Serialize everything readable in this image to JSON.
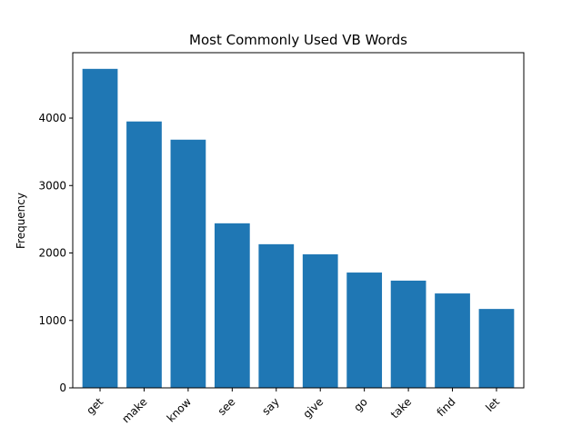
{
  "chart_data": {
    "type": "bar",
    "title": "Most Commonly Used VB Words",
    "xlabel": "",
    "ylabel": "Frequency",
    "categories": [
      "get",
      "make",
      "know",
      "see",
      "say",
      "give",
      "go",
      "take",
      "find",
      "let"
    ],
    "values": [
      4730,
      3950,
      3680,
      2440,
      2130,
      1980,
      1710,
      1590,
      1400,
      1170
    ],
    "ylim": [
      0,
      4970
    ],
    "yticks": [
      0,
      1000,
      2000,
      3000,
      4000
    ],
    "bar_color": "#1f77b4",
    "grid": false,
    "legend": "none"
  }
}
